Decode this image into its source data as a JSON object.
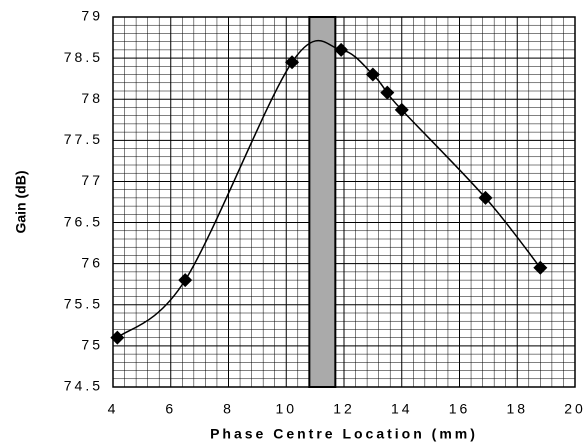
{
  "chart_data": {
    "type": "line",
    "x_label": "Phase Centre Location (mm)",
    "y_label": "Gain (dB)",
    "series": [
      {
        "name": "Gain",
        "color": "#000000",
        "x": [
          4.15,
          6.5,
          10.2,
          11.9,
          13.0,
          13.5,
          14.0,
          16.9,
          18.8
        ],
        "values": [
          75.1,
          75.8,
          78.45,
          78.6,
          78.3,
          78.08,
          77.87,
          76.8,
          75.95
        ]
      }
    ],
    "xlim": [
      4,
      20
    ],
    "xticks": [
      4,
      6,
      8,
      10,
      12,
      14,
      16,
      18,
      20
    ],
    "ylim": [
      74.5,
      79
    ],
    "yticks": [
      74.5,
      75,
      75.5,
      76,
      76.5,
      77,
      77.5,
      78,
      78.5,
      79
    ],
    "grid": true,
    "minor_grid": {
      "x": 0.4,
      "y": 0.1
    },
    "band": {
      "x": [
        10.8,
        11.7
      ],
      "color": "#aaaaaa"
    }
  }
}
